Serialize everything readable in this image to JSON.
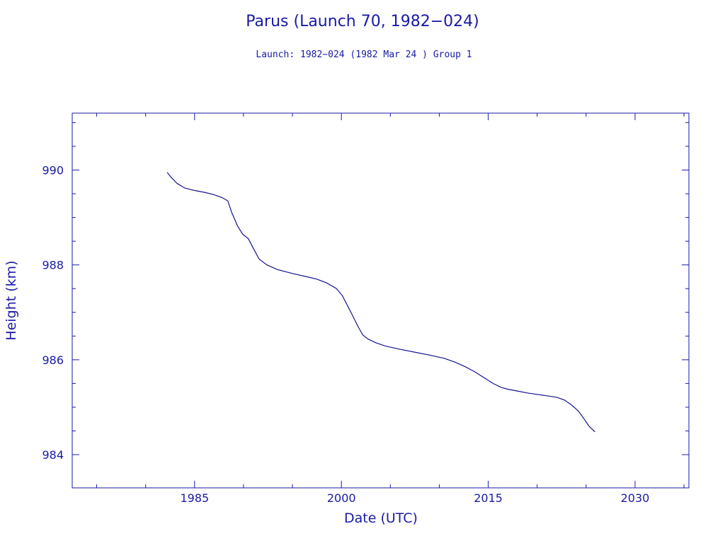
{
  "title": "Parus (Launch 70, 1982−024)",
  "subtitle": "Launch: 1982−024  (1982 Mar 24 )  Group 1",
  "colors": {
    "ink": "#1a1aa6",
    "line": "#14148c",
    "background": "#ffffff"
  },
  "chart_data": {
    "type": "line",
    "title": "Parus (Launch 70, 1982−024)",
    "subtitle": "Launch: 1982−024  (1982 Mar 24 )  Group 1",
    "xlabel": "Date (UTC)",
    "ylabel": "Height (km)",
    "xlim": [
      1972.5,
      2035.5
    ],
    "ylim": [
      983.3,
      991.2
    ],
    "x_ticks": [
      1985,
      2000,
      2015,
      2030
    ],
    "x_tick_labels": [
      "1985",
      "2000",
      "2015",
      "2030"
    ],
    "y_ticks": [
      984,
      986,
      988,
      990
    ],
    "y_tick_labels": [
      "984",
      "986",
      "988",
      "990"
    ],
    "grid": false,
    "legend": "none",
    "series": [
      {
        "x": [
          1982.2,
          1982.6,
          1983.2,
          1984.0,
          1985.0,
          1986.0,
          1987.0,
          1987.8,
          1988.4,
          1988.8,
          1989.4,
          1989.9,
          1990.5,
          1991.0,
          1991.6,
          1992.4,
          1993.5,
          1995.0,
          1996.5,
          1997.5,
          1998.5,
          1999.5,
          2000.1,
          2000.6,
          2001.1,
          2001.7,
          2002.2,
          2002.7,
          2003.5,
          2004.5,
          2006.0,
          2007.5,
          2009.0,
          2010.5,
          2011.6,
          2012.6,
          2013.6,
          2014.6,
          2015.5,
          2016.3,
          2017.0,
          2018.0,
          2019.0,
          2020.0,
          2021.0,
          2022.0,
          2022.8,
          2023.5,
          2024.2,
          2024.8,
          2025.3,
          2025.9
        ],
        "y": [
          989.95,
          989.85,
          989.72,
          989.62,
          989.57,
          989.53,
          989.48,
          989.42,
          989.35,
          989.1,
          988.82,
          988.65,
          988.55,
          988.35,
          988.12,
          988.0,
          987.9,
          987.82,
          987.75,
          987.7,
          987.62,
          987.5,
          987.35,
          987.15,
          986.95,
          986.7,
          986.52,
          986.44,
          986.36,
          986.29,
          986.22,
          986.16,
          986.1,
          986.03,
          985.95,
          985.86,
          985.75,
          985.62,
          985.5,
          985.42,
          985.38,
          985.34,
          985.3,
          985.27,
          985.24,
          985.21,
          985.15,
          985.05,
          984.92,
          984.75,
          984.6,
          984.48
        ]
      }
    ]
  }
}
